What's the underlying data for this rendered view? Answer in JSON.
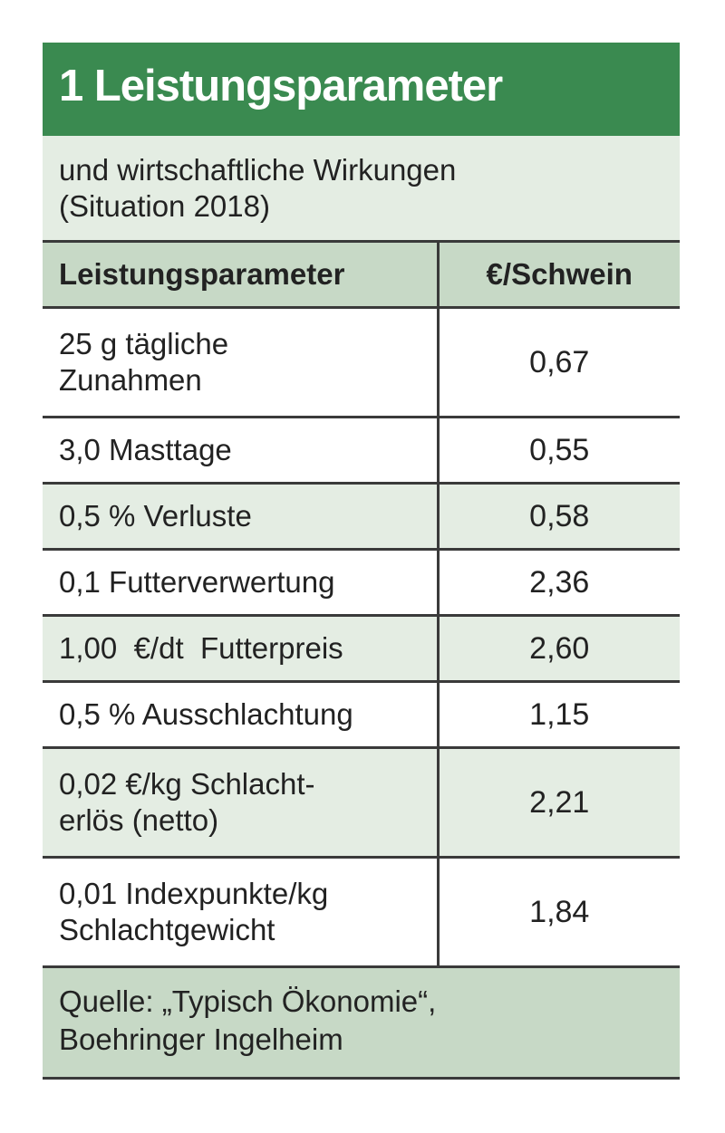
{
  "title": "1 Leistungsparameter",
  "subtitle": [
    "und wirtschaftliche Wirkungen",
    "(Situation 2018)"
  ],
  "table": {
    "headers": [
      "Leistungsparameter",
      "€/Schwein"
    ],
    "rows": [
      {
        "param": [
          "25 g tägliche",
          "Zunahmen"
        ],
        "value": "0,67"
      },
      {
        "param": [
          "3,0 Masttage"
        ],
        "value": "0,55"
      },
      {
        "param": [
          "0,5 % Verluste"
        ],
        "value": "0,58"
      },
      {
        "param": [
          "0,1 Futterverwertung"
        ],
        "value": "2,36"
      },
      {
        "param": [
          "1,00  €/dt  Futterpreis"
        ],
        "value": "2,60"
      },
      {
        "param": [
          "0,5 % Ausschlachtung"
        ],
        "value": "1,15"
      },
      {
        "param": [
          "0,02 €/kg Schlacht-",
          "erlös (netto)"
        ],
        "value": "2,21"
      },
      {
        "param": [
          "0,01 Indexpunkte/kg",
          "Schlachtgewicht"
        ],
        "value": "1,84"
      }
    ]
  },
  "source": [
    "Quelle: „Typisch Ökonomie“,",
    "Boehringer Ingelheim"
  ],
  "colors": {
    "title_bg": "#3a8a50",
    "header_bg": "#c7d9c6",
    "alt_row_bg": "#e4ede3",
    "title_text": "#ffffff"
  }
}
